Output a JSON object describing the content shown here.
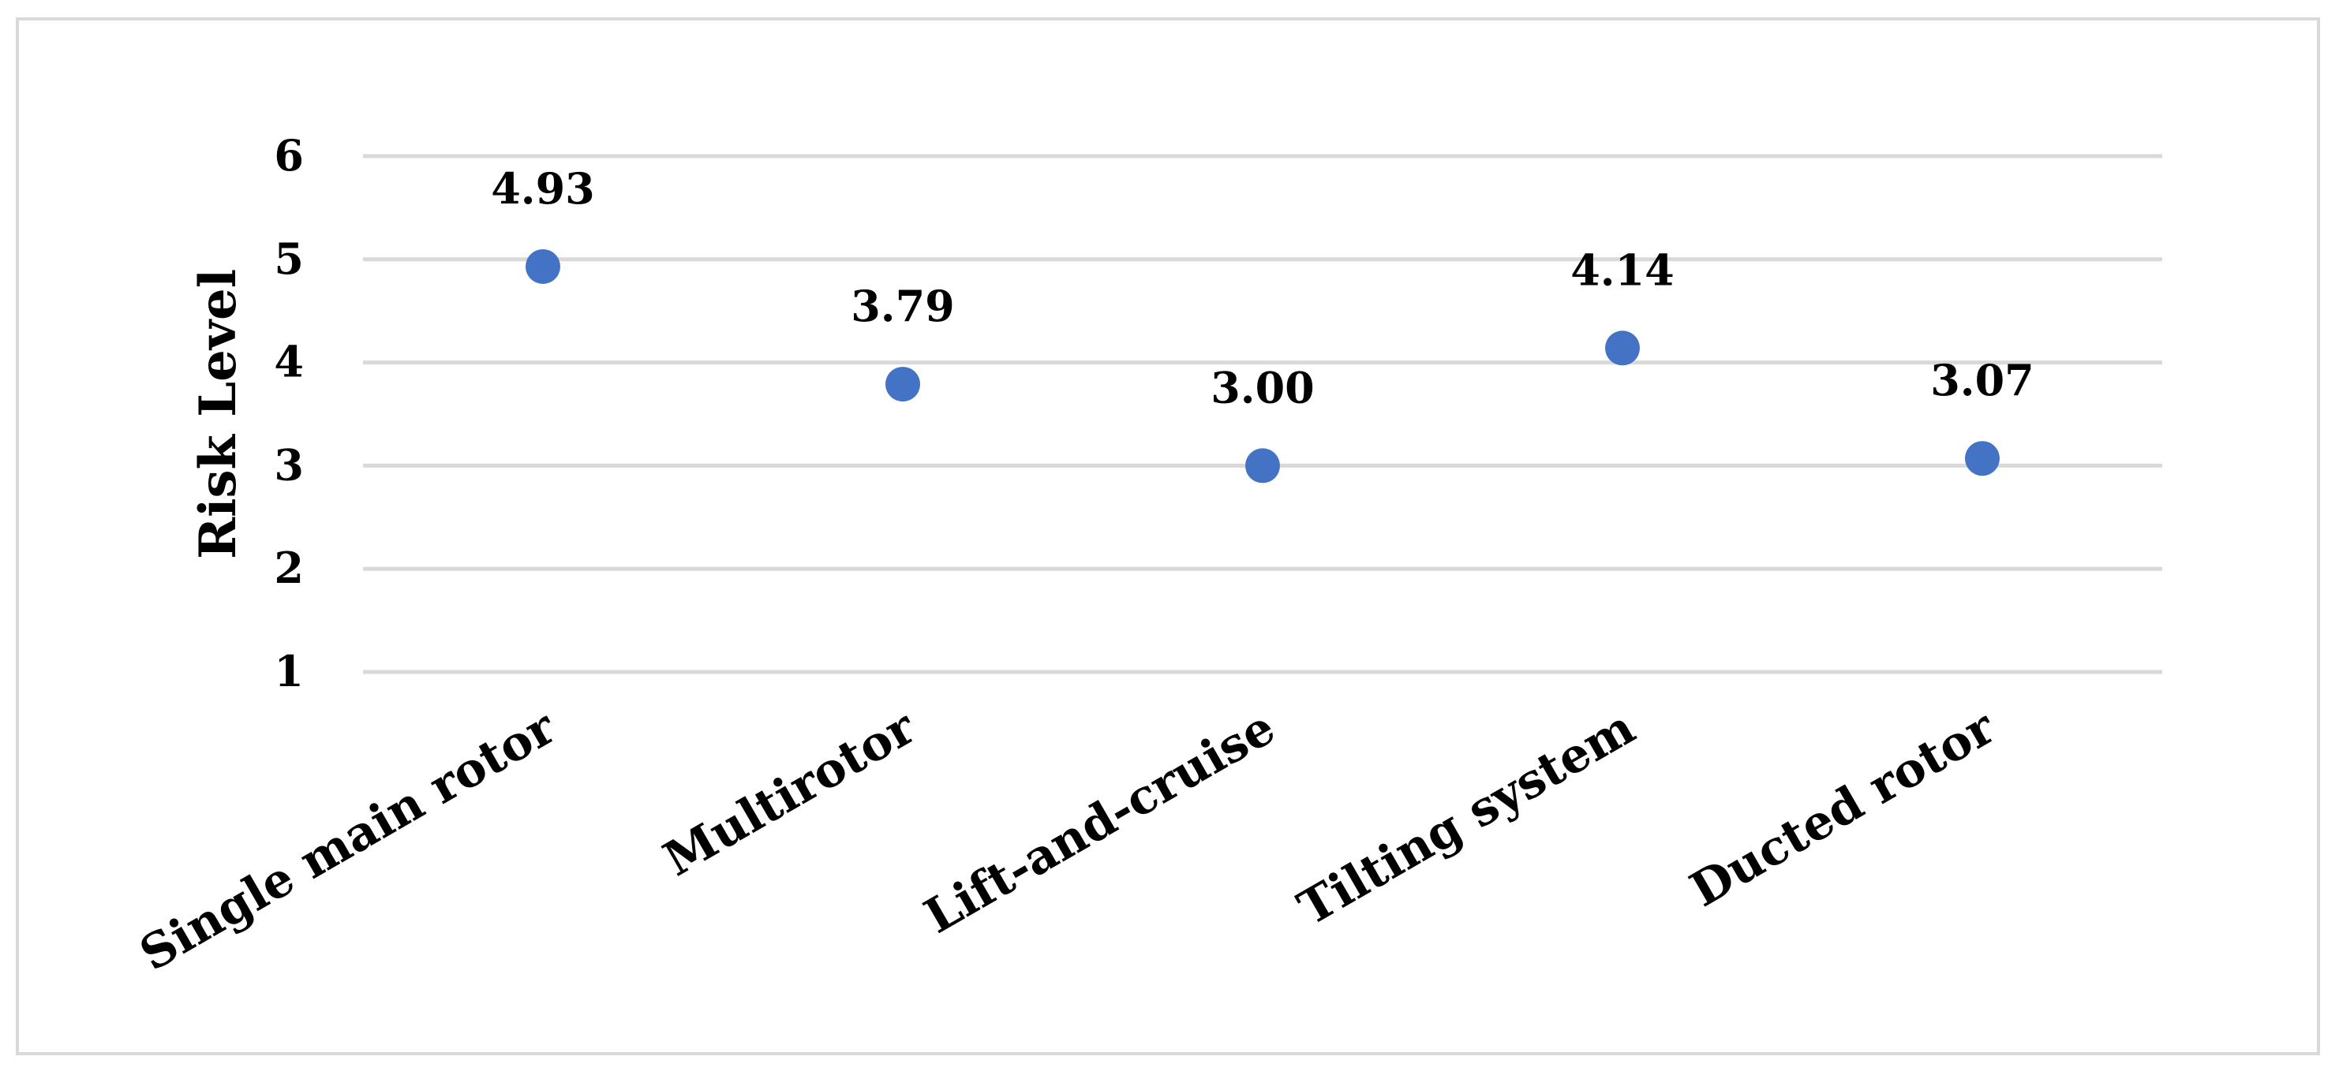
{
  "chart_data": {
    "type": "scatter",
    "categories": [
      "Single main rotor",
      "Multirotor",
      "Lift-and-cruise",
      "Tilting system",
      "Ducted rotor"
    ],
    "values": [
      4.93,
      3.79,
      3.0,
      4.14,
      3.07
    ],
    "data_labels": [
      "4.93",
      "3.79",
      "3.00",
      "4.14",
      "3.07"
    ],
    "ylabel": "Risk Level",
    "ylim": [
      1,
      6
    ],
    "yticks": [
      "1",
      "2",
      "3",
      "4",
      "5",
      "6"
    ],
    "grid": true,
    "legend": "none",
    "colors": {
      "marker": "#4472c4",
      "gridline": "#d9d9d9",
      "border": "#d9d9d9",
      "text": "#000000"
    }
  }
}
